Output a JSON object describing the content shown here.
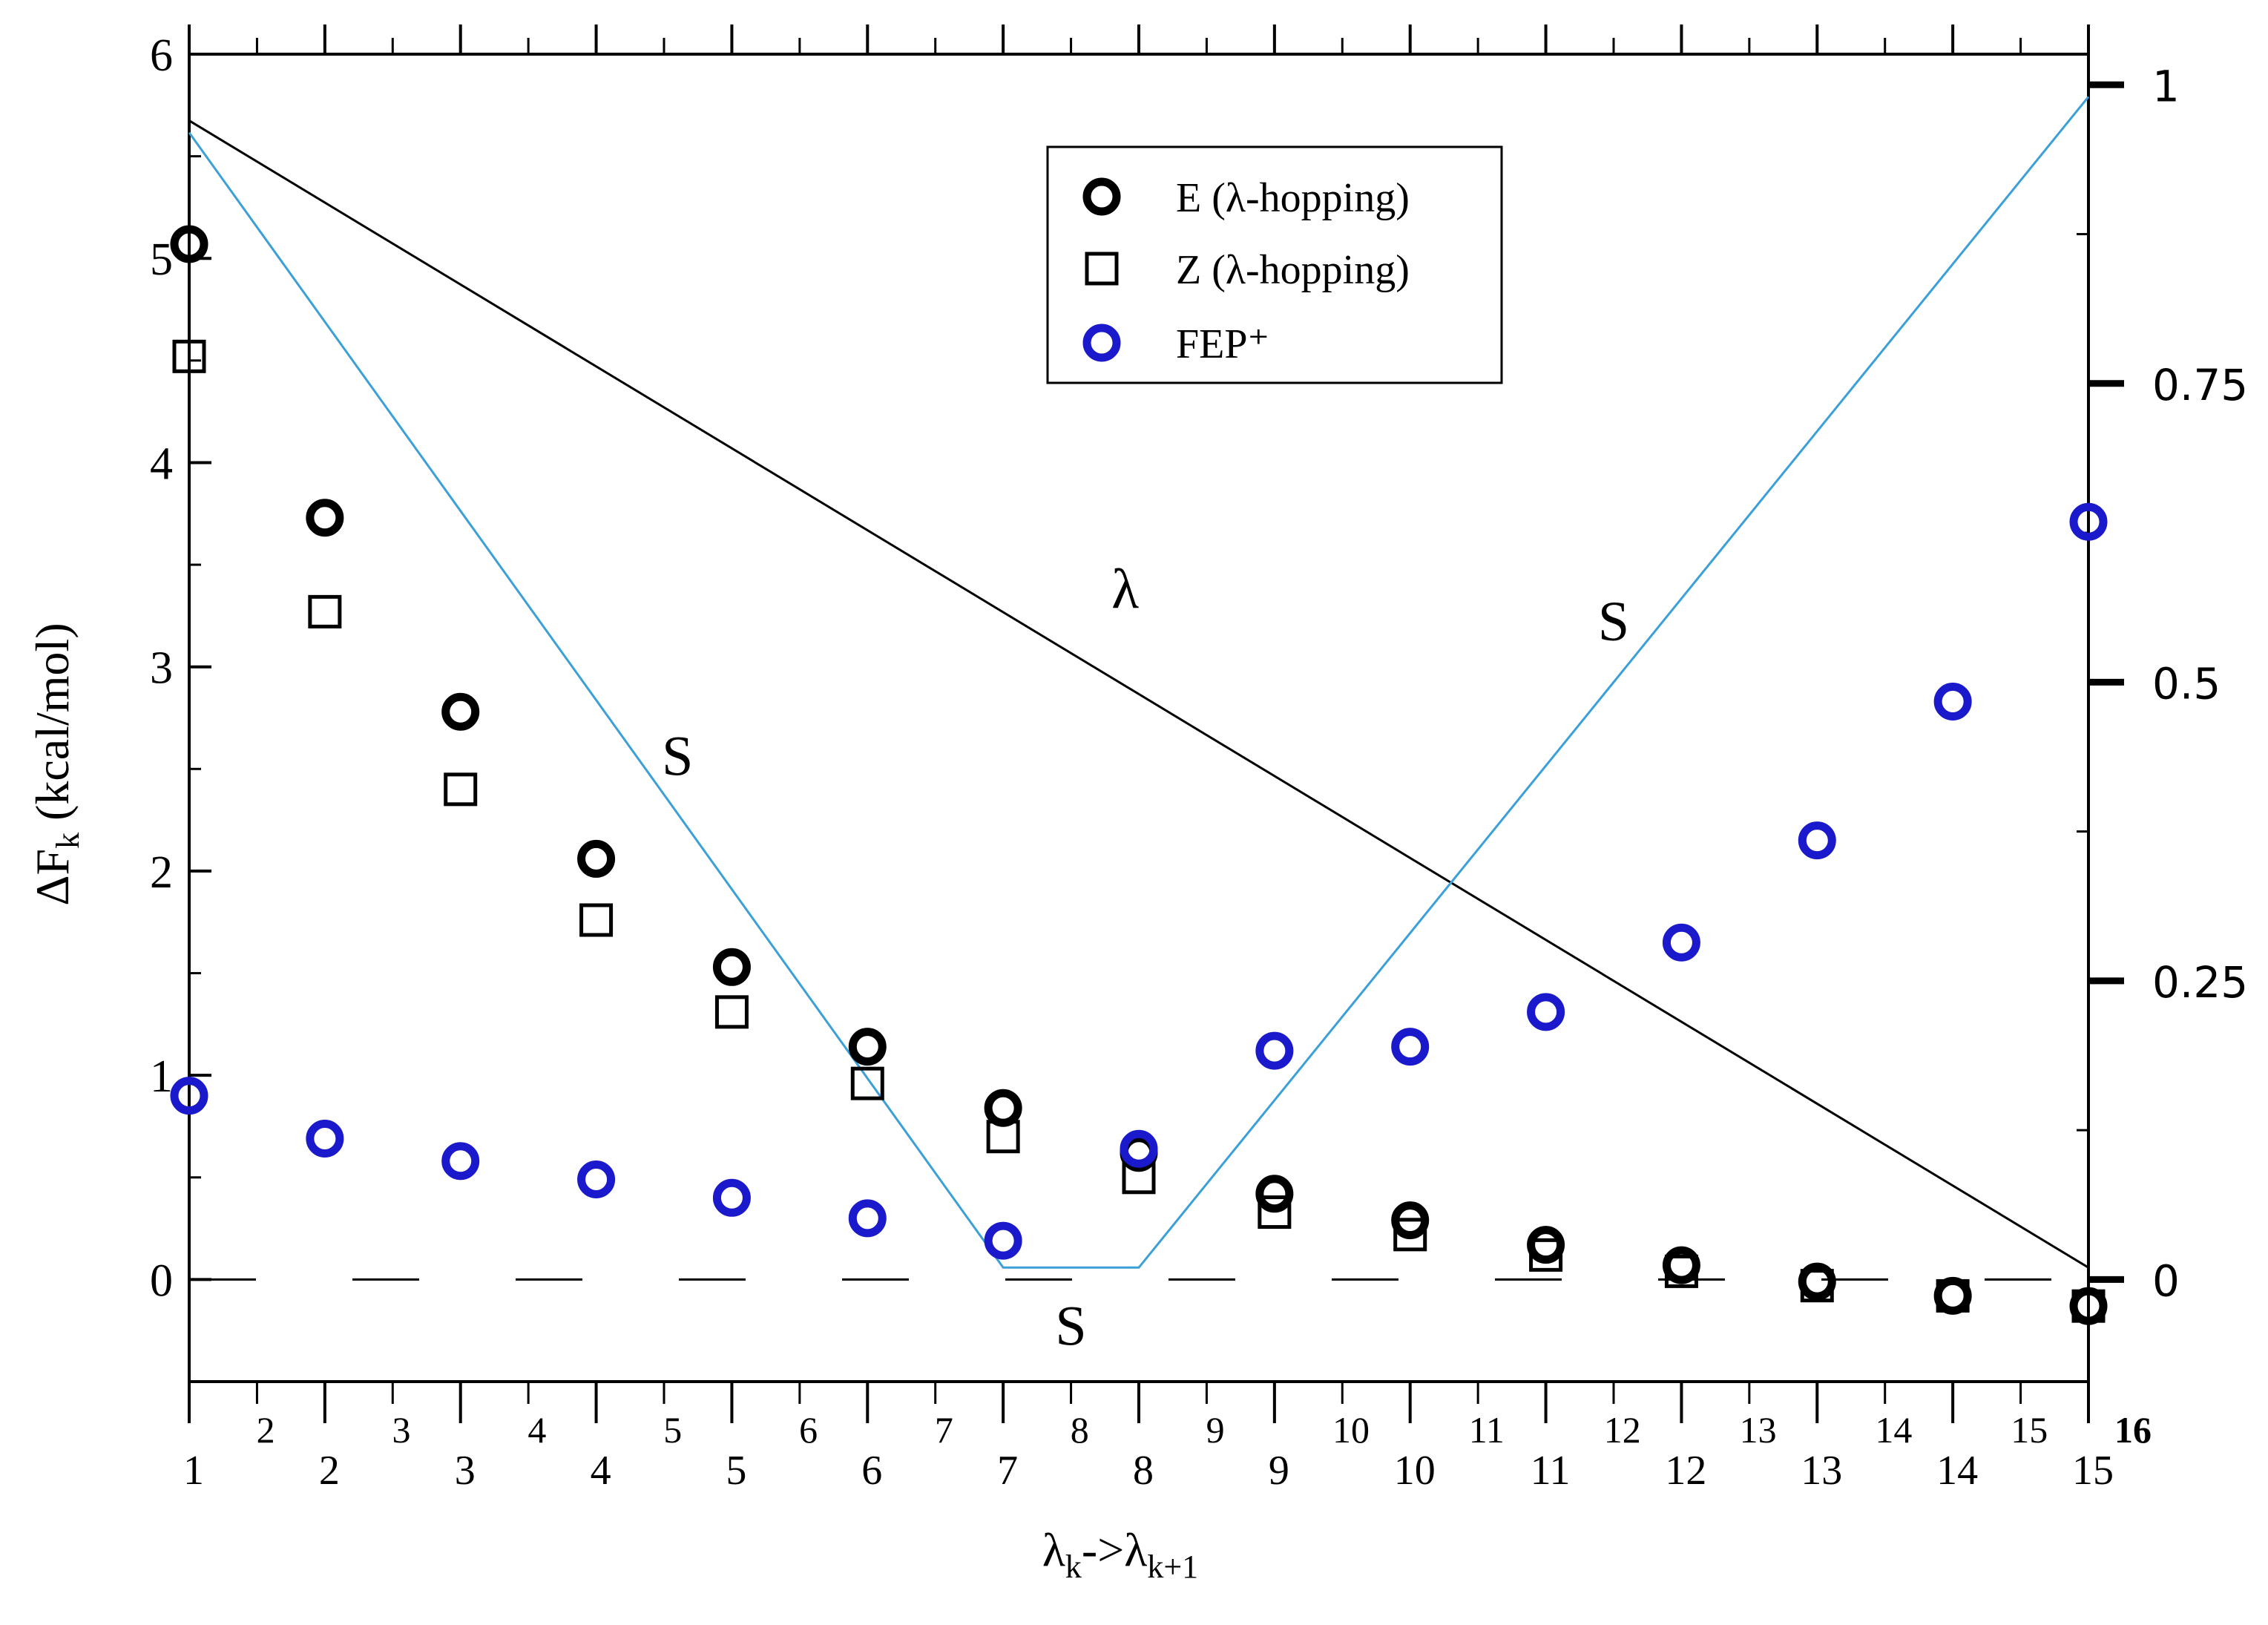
{
  "chart_data": {
    "type": "scatter",
    "xlabel": {
      "main": "λ",
      "sub1": "k",
      "mid": "->λ",
      "sub2": "k+1"
    },
    "ylabel": {
      "main": "ΔF",
      "sub": "k",
      "rest": " (kcal/mol)"
    },
    "ylim": [
      -0.5,
      6
    ],
    "xlim": [
      1,
      15
    ],
    "y2lim": [
      0,
      1
    ],
    "grid": false,
    "legend_position": "top-center",
    "x_ticks": [
      "1",
      "2",
      "3",
      "4",
      "5",
      "6",
      "7",
      "8",
      "9",
      "10",
      "11",
      "12",
      "13",
      "14",
      "15"
    ],
    "x_secondary_ticks": [
      "2",
      "3",
      "4",
      "5",
      "6",
      "7",
      "8",
      "9",
      "10",
      "11",
      "12",
      "13",
      "14",
      "15",
      "16"
    ],
    "y_ticks": [
      "0",
      "1",
      "2",
      "3",
      "4",
      "5",
      "6"
    ],
    "y2_ticks": [
      "0",
      "0.25",
      "0.5",
      "0.75",
      "1"
    ],
    "series": [
      {
        "name": "E (λ-hopping)",
        "marker": "circle",
        "color": "#000000",
        "x": [
          1,
          2,
          3,
          4,
          5,
          6,
          7,
          8,
          9,
          10,
          11,
          12,
          13,
          14,
          15
        ],
        "y": [
          5.07,
          3.73,
          2.78,
          2.06,
          1.53,
          1.14,
          0.84,
          0.62,
          0.42,
          0.29,
          0.17,
          0.07,
          -0.01,
          -0.08,
          -0.13
        ]
      },
      {
        "name": "Z (λ-hopping)",
        "marker": "square",
        "color": "#000000",
        "x": [
          1,
          2,
          3,
          4,
          5,
          6,
          7,
          8,
          9,
          10,
          11,
          12,
          13,
          14,
          15
        ],
        "y": [
          4.52,
          3.27,
          2.4,
          1.76,
          1.31,
          0.96,
          0.7,
          0.5,
          0.33,
          0.22,
          0.12,
          0.04,
          -0.03,
          -0.08,
          -0.13
        ]
      },
      {
        "name": "FEP⁺",
        "marker": "circle",
        "color": "#1a1acc",
        "x": [
          1,
          2,
          3,
          4,
          5,
          6,
          7,
          8,
          9,
          10,
          11,
          12,
          13,
          14,
          15
        ],
        "y": [
          0.9,
          0.69,
          0.58,
          0.49,
          0.4,
          0.3,
          0.19,
          0.64,
          1.12,
          1.14,
          1.31,
          1.65,
          2.15,
          2.83,
          3.71
        ]
      }
    ],
    "lines": [
      {
        "label": "λ",
        "color": "#000000",
        "axis": "right",
        "x": [
          1,
          15
        ],
        "y": [
          0.97,
          0.01
        ]
      },
      {
        "label": "S",
        "color": "#3ca0d8",
        "axis": "right",
        "x": [
          1,
          7,
          8,
          15
        ],
        "y": [
          0.96,
          0.01,
          0.01,
          0.99
        ]
      }
    ],
    "annotations": [
      {
        "text": "λ",
        "x": 7.9,
        "y": 3.29,
        "color": "#000000"
      },
      {
        "text": "S",
        "x": 4.6,
        "y": 2.47,
        "color": "#1a1acc"
      },
      {
        "text": "S",
        "x": 7.5,
        "y": -0.32,
        "color": "#1a1acc"
      },
      {
        "text": "S",
        "x": 11.5,
        "y": 3.13,
        "color": "#1a1acc"
      }
    ],
    "zero_line": {
      "y": 0,
      "style": "dashed"
    }
  }
}
